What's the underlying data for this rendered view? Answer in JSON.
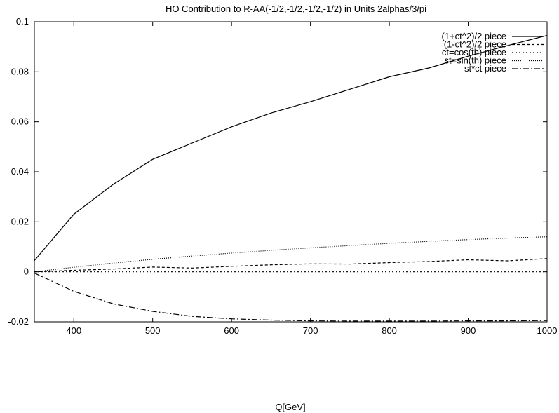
{
  "chart_data": {
    "type": "line",
    "title": "HO Contribution to R-AA(-1/2,-1/2,-1/2,-1/2) in Units 2alphas/3/pi",
    "xlabel": "Q[GeV]",
    "ylabel": "",
    "xlim": [
      350,
      1000
    ],
    "ylim": [
      -0.02,
      0.1
    ],
    "xticks": [
      400,
      500,
      600,
      700,
      800,
      900,
      1000
    ],
    "yticks": [
      "-0.02",
      "0",
      "0.02",
      "0.04",
      "0.06",
      "0.08",
      "0.1"
    ],
    "grid": false,
    "legend_position": "top-right",
    "series": [
      {
        "name": "(1+ct^2)/2 piece",
        "dash": "solid",
        "x": [
          350,
          400,
          450,
          500,
          550,
          600,
          650,
          700,
          750,
          800,
          850,
          900,
          950,
          1000
        ],
        "y": [
          0.0045,
          0.023,
          0.035,
          0.045,
          0.0515,
          0.058,
          0.0635,
          0.068,
          0.073,
          0.078,
          0.0815,
          0.0862,
          0.0905,
          0.0945
        ]
      },
      {
        "name": "(1-ct^2)/2 piece",
        "dash": "dashed",
        "x": [
          350,
          400,
          450,
          500,
          550,
          600,
          650,
          700,
          750,
          800,
          850,
          900,
          950,
          1000
        ],
        "y": [
          0.0,
          0.0006,
          0.0011,
          0.0019,
          0.0015,
          0.0022,
          0.0028,
          0.0032,
          0.0031,
          0.0037,
          0.0041,
          0.0048,
          0.0044,
          0.0053
        ]
      },
      {
        "name": "ct=cos(th) piece",
        "dash": "dotted",
        "x": [
          350,
          400,
          450,
          500,
          550,
          600,
          650,
          700,
          750,
          800,
          850,
          900,
          950,
          1000
        ],
        "y": [
          0.0,
          0.0,
          0.0,
          0.0,
          0.0,
          0.0,
          0.0,
          0.0,
          0.0,
          0.0,
          0.0,
          0.0,
          0.0,
          0.0
        ]
      },
      {
        "name": "st=sin(th) piece",
        "dash": "fine-dotted",
        "x": [
          350,
          400,
          450,
          500,
          550,
          600,
          650,
          700,
          750,
          800,
          850,
          900,
          950,
          1000
        ],
        "y": [
          0.0,
          0.0018,
          0.0035,
          0.005,
          0.0063,
          0.0075,
          0.0086,
          0.0096,
          0.0105,
          0.0114,
          0.0122,
          0.0129,
          0.0135,
          0.014
        ]
      },
      {
        "name": "st*ct piece",
        "dash": "dash-dot",
        "x": [
          350,
          400,
          450,
          500,
          550,
          600,
          650,
          700,
          750,
          800,
          850,
          900,
          950,
          1000
        ],
        "y": [
          -0.0005,
          -0.0078,
          -0.0128,
          -0.0158,
          -0.0178,
          -0.0188,
          -0.0193,
          -0.0196,
          -0.0197,
          -0.0197,
          -0.0197,
          -0.0196,
          -0.0196,
          -0.0195
        ]
      }
    ]
  }
}
